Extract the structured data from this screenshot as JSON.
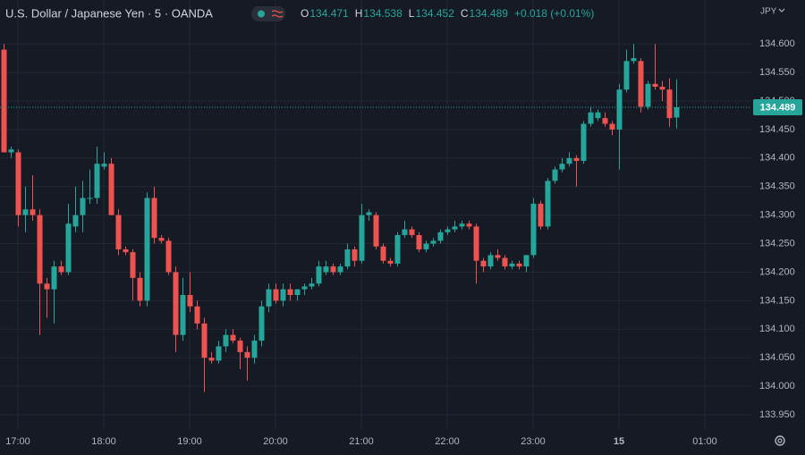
{
  "chart_data": {
    "type": "candlestick",
    "title": "U.S. Dollar / Japanese Yen · 5 · OANDA",
    "ohlc_labels": [
      "O",
      "H",
      "L",
      "C"
    ],
    "change_label": "+0.018 (+0.01%)",
    "currency": "JPY",
    "up_color": "#26a69a",
    "down_color": "#ef5350",
    "grid": true,
    "x": [
      "16:50",
      "16:55",
      "17:00",
      "17:05",
      "17:10",
      "17:15",
      "17:20",
      "17:25",
      "17:30",
      "17:35",
      "17:40",
      "17:45",
      "17:50",
      "17:55",
      "18:00",
      "18:05",
      "18:10",
      "18:15",
      "18:20",
      "18:25",
      "18:30",
      "18:35",
      "18:40",
      "18:45",
      "18:50",
      "18:55",
      "19:00",
      "19:05",
      "19:10",
      "19:15",
      "19:20",
      "19:25",
      "19:30",
      "19:35",
      "19:40",
      "19:45",
      "19:50",
      "19:55",
      "20:00",
      "20:05",
      "20:10",
      "20:15",
      "20:20",
      "20:25",
      "20:30",
      "20:35",
      "20:40",
      "20:45",
      "20:50",
      "20:55",
      "21:00",
      "21:05",
      "21:10",
      "21:15",
      "21:20",
      "21:25",
      "21:30",
      "21:35",
      "21:40",
      "21:45",
      "21:50",
      "21:55",
      "22:00",
      "22:05",
      "22:10",
      "22:15",
      "22:20",
      "22:25",
      "22:30",
      "22:35",
      "22:40",
      "22:45",
      "22:50",
      "22:55",
      "23:00",
      "23:05",
      "23:10",
      "23:15",
      "23:20",
      "23:25",
      "23:30",
      "23:35",
      "23:40",
      "23:45",
      "23:50",
      "23:55",
      "00:00",
      "00:05",
      "00:10",
      "00:15",
      "00:20",
      "00:25",
      "00:30",
      "00:35",
      "00:40"
    ],
    "open": [
      134.59,
      134.41,
      134.41,
      134.3,
      134.31,
      134.3,
      134.18,
      134.17,
      134.21,
      134.2,
      134.28,
      134.3,
      134.33,
      134.33,
      134.385,
      134.39,
      134.3,
      134.24,
      134.235,
      134.19,
      134.15,
      134.33,
      134.26,
      134.255,
      134.2,
      134.09,
      134.16,
      134.14,
      134.11,
      134.05,
      134.045,
      134.07,
      134.09,
      134.08,
      134.06,
      134.05,
      134.08,
      134.14,
      134.17,
      134.15,
      134.17,
      134.16,
      134.17,
      134.175,
      134.18,
      134.2,
      134.21,
      134.2,
      134.21,
      134.24,
      134.22,
      134.3,
      134.3,
      134.245,
      134.22,
      134.215,
      134.265,
      134.275,
      134.265,
      134.24,
      134.25,
      134.255,
      134.27,
      134.275,
      134.28,
      134.285,
      134.28,
      134.22,
      134.21,
      134.23,
      134.225,
      134.21,
      134.215,
      134.21,
      134.23,
      134.32,
      134.28,
      134.36,
      134.38,
      134.39,
      134.4,
      134.395,
      134.46,
      134.47,
      134.47,
      134.46,
      134.45,
      134.52,
      134.57,
      134.57,
      134.49,
      134.53,
      134.525,
      134.52,
      134.471
    ],
    "high": [
      134.6,
      134.42,
      134.415,
      134.35,
      134.37,
      134.31,
      134.19,
      134.22,
      134.22,
      134.32,
      134.35,
      134.36,
      134.38,
      134.42,
      134.41,
      134.4,
      134.31,
      134.245,
      134.24,
      134.2,
      134.34,
      134.35,
      134.265,
      134.26,
      134.21,
      134.19,
      134.2,
      134.15,
      134.12,
      134.06,
      134.08,
      134.1,
      134.1,
      134.085,
      134.07,
      134.09,
      134.15,
      134.18,
      134.18,
      134.18,
      134.18,
      134.17,
      134.18,
      134.19,
      134.22,
      134.22,
      134.215,
      134.215,
      134.25,
      134.245,
      134.32,
      134.31,
      134.305,
      134.25,
      134.225,
      134.27,
      134.29,
      134.28,
      134.27,
      134.255,
      134.26,
      134.275,
      134.28,
      134.29,
      134.29,
      134.29,
      134.285,
      134.225,
      134.235,
      134.24,
      134.23,
      134.22,
      134.22,
      134.225,
      134.33,
      134.325,
      134.365,
      134.385,
      134.4,
      134.41,
      134.405,
      134.465,
      134.49,
      134.485,
      134.48,
      134.465,
      134.53,
      134.59,
      134.6,
      134.575,
      134.535,
      134.6,
      134.535,
      134.54,
      134.538
    ],
    "low": [
      134.41,
      134.4,
      134.28,
      134.27,
      134.29,
      134.09,
      134.12,
      134.11,
      134.195,
      134.195,
      134.27,
      134.27,
      134.32,
      134.32,
      134.38,
      134.3,
      134.23,
      134.23,
      134.15,
      134.14,
      134.14,
      134.25,
      134.25,
      134.195,
      134.06,
      134.08,
      134.13,
      134.1,
      133.99,
      134.04,
      134.04,
      134.06,
      134.075,
      134.03,
      134.01,
      134.04,
      134.07,
      134.13,
      134.145,
      134.14,
      134.15,
      134.15,
      134.16,
      134.17,
      134.175,
      134.195,
      134.195,
      134.195,
      134.205,
      134.21,
      134.215,
      134.29,
      134.24,
      134.215,
      134.21,
      134.21,
      134.26,
      134.26,
      134.235,
      134.235,
      134.245,
      134.25,
      134.265,
      134.27,
      134.275,
      134.275,
      134.18,
      134.2,
      134.205,
      134.22,
      134.205,
      134.205,
      134.205,
      134.2,
      134.225,
      134.275,
      134.275,
      134.355,
      134.375,
      134.385,
      134.35,
      134.39,
      134.455,
      134.465,
      134.455,
      134.44,
      134.38,
      134.515,
      134.565,
      134.48,
      134.485,
      134.52,
      134.5,
      134.455,
      134.452
    ],
    "close": [
      134.41,
      134.415,
      134.3,
      134.31,
      134.3,
      134.18,
      134.17,
      134.21,
      134.2,
      134.285,
      134.3,
      134.33,
      134.33,
      134.39,
      134.39,
      134.3,
      134.24,
      134.235,
      134.19,
      134.15,
      134.33,
      134.26,
      134.255,
      134.2,
      134.09,
      134.16,
      134.14,
      134.11,
      134.05,
      134.045,
      134.07,
      134.09,
      134.08,
      134.06,
      134.05,
      134.08,
      134.14,
      134.17,
      134.15,
      134.17,
      134.16,
      134.17,
      134.175,
      134.18,
      134.21,
      134.21,
      134.2,
      134.21,
      134.24,
      134.22,
      134.3,
      134.305,
      134.245,
      134.22,
      134.215,
      134.265,
      134.275,
      134.265,
      134.24,
      134.25,
      134.255,
      134.27,
      134.275,
      134.28,
      134.285,
      134.28,
      134.22,
      134.21,
      134.23,
      134.225,
      134.21,
      134.215,
      134.21,
      134.23,
      134.32,
      134.28,
      134.36,
      134.38,
      134.39,
      134.4,
      134.395,
      134.46,
      134.48,
      134.48,
      134.46,
      134.45,
      134.52,
      134.57,
      134.575,
      134.49,
      134.53,
      134.525,
      134.52,
      134.47,
      134.489
    ],
    "ylim": [
      133.925,
      134.677
    ],
    "yticks": [
      {
        "value": 133.95,
        "label": "133.950"
      },
      {
        "value": 134.0,
        "label": "134.000"
      },
      {
        "value": 134.05,
        "label": "134.050"
      },
      {
        "value": 134.1,
        "label": "134.100"
      },
      {
        "value": 134.15,
        "label": "134.150"
      },
      {
        "value": 134.2,
        "label": "134.200"
      },
      {
        "value": 134.25,
        "label": "134.250"
      },
      {
        "value": 134.3,
        "label": "134.300"
      },
      {
        "value": 134.35,
        "label": "134.350"
      },
      {
        "value": 134.4,
        "label": "134.400"
      },
      {
        "value": 134.45,
        "label": "134.450"
      },
      {
        "value": 134.5,
        "label": "134.500"
      },
      {
        "value": 134.55,
        "label": "134.550"
      },
      {
        "value": 134.6,
        "label": "134.600"
      }
    ],
    "xticks": [
      {
        "value": "17:00",
        "label": "17:00"
      },
      {
        "value": "18:00",
        "label": "18:00"
      },
      {
        "value": "19:00",
        "label": "19:00"
      },
      {
        "value": "20:00",
        "label": "20:00"
      },
      {
        "value": "21:00",
        "label": "21:00"
      },
      {
        "value": "22:00",
        "label": "22:00"
      },
      {
        "value": "23:00",
        "label": "23:00"
      },
      {
        "value": "00:00",
        "label": "15"
      },
      {
        "value": "01:00",
        "label": "01:00"
      }
    ]
  }
}
